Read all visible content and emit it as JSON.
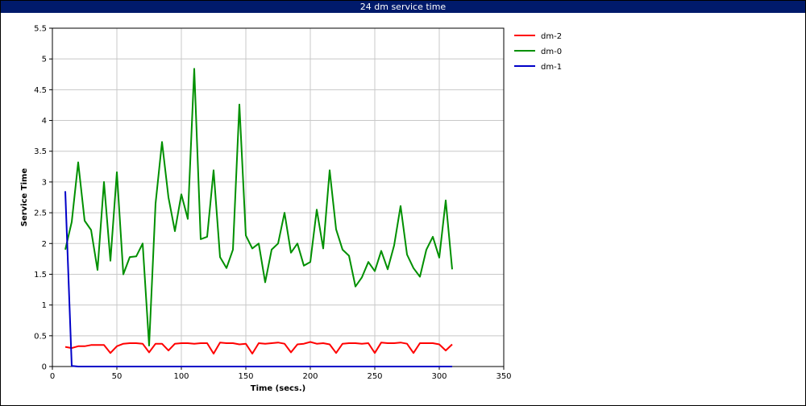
{
  "window": {
    "title": "24 dm service time"
  },
  "chart_data": {
    "type": "line",
    "title": "24 dm service time",
    "xlabel": "Time (secs.)",
    "ylabel": "Service Time",
    "xlim": [
      0,
      350
    ],
    "ylim": [
      0,
      5.5
    ],
    "xticks": [
      0,
      50,
      100,
      150,
      200,
      250,
      300,
      350
    ],
    "yticks": [
      0,
      0.5,
      1,
      1.5,
      2,
      2.5,
      3,
      3.5,
      4,
      4.5,
      5,
      5.5
    ],
    "xtick_labels": [
      "0",
      "50",
      "100",
      "150",
      "200",
      "250",
      "300",
      "350"
    ],
    "ytick_labels": [
      "0",
      "0.5",
      "1",
      "1.5",
      "2",
      "2.5",
      "3",
      "3.5",
      "4",
      "4.5",
      "5",
      "5.5"
    ],
    "grid": true,
    "legend_position": "top-right (outside plot)",
    "series": [
      {
        "name": "dm-2",
        "color": "#ff0000",
        "x": [
          10,
          15,
          20,
          25,
          30,
          35,
          40,
          45,
          50,
          55,
          60,
          65,
          70,
          75,
          80,
          85,
          90,
          95,
          100,
          105,
          110,
          115,
          120,
          125,
          130,
          135,
          140,
          145,
          150,
          155,
          160,
          165,
          170,
          175,
          180,
          185,
          190,
          195,
          200,
          205,
          210,
          215,
          220,
          225,
          230,
          235,
          240,
          245,
          250,
          255,
          260,
          265,
          270,
          275,
          280,
          285,
          290,
          295,
          300,
          305,
          310
        ],
        "y": [
          0.32,
          0.3,
          0.33,
          0.33,
          0.35,
          0.35,
          0.35,
          0.22,
          0.33,
          0.37,
          0.38,
          0.38,
          0.37,
          0.23,
          0.37,
          0.37,
          0.26,
          0.37,
          0.38,
          0.38,
          0.37,
          0.38,
          0.38,
          0.21,
          0.39,
          0.38,
          0.38,
          0.36,
          0.37,
          0.21,
          0.38,
          0.37,
          0.38,
          0.39,
          0.37,
          0.23,
          0.36,
          0.37,
          0.4,
          0.37,
          0.38,
          0.36,
          0.22,
          0.37,
          0.38,
          0.38,
          0.37,
          0.38,
          0.22,
          0.39,
          0.38,
          0.38,
          0.39,
          0.37,
          0.22,
          0.38,
          0.38,
          0.38,
          0.36,
          0.26,
          0.36
        ]
      },
      {
        "name": "dm-0",
        "color": "#009000",
        "x": [
          10,
          15,
          20,
          25,
          30,
          35,
          40,
          45,
          50,
          55,
          60,
          65,
          70,
          75,
          80,
          85,
          90,
          95,
          100,
          105,
          110,
          115,
          120,
          125,
          130,
          135,
          140,
          145,
          150,
          155,
          160,
          165,
          170,
          175,
          180,
          185,
          190,
          195,
          200,
          205,
          210,
          215,
          220,
          225,
          230,
          235,
          240,
          245,
          250,
          255,
          260,
          265,
          270,
          275,
          280,
          285,
          290,
          295,
          300,
          305,
          310
        ],
        "y": [
          1.9,
          2.35,
          3.32,
          2.37,
          2.22,
          1.57,
          3.0,
          1.72,
          3.16,
          1.5,
          1.78,
          1.79,
          2.0,
          0.34,
          2.65,
          3.65,
          2.75,
          2.2,
          2.8,
          2.4,
          4.84,
          2.07,
          2.11,
          3.19,
          1.78,
          1.6,
          1.9,
          4.26,
          2.13,
          1.92,
          2.0,
          1.37,
          1.9,
          2.0,
          2.5,
          1.85,
          2.0,
          1.64,
          1.7,
          2.55,
          1.92,
          3.19,
          2.23,
          1.9,
          1.8,
          1.3,
          1.45,
          1.7,
          1.55,
          1.88,
          1.58,
          1.97,
          2.61,
          1.82,
          1.6,
          1.46,
          1.9,
          2.11,
          1.77,
          2.7,
          1.58
        ]
      },
      {
        "name": "dm-1",
        "color": "#0000c8",
        "x": [
          10,
          15,
          20,
          50,
          100,
          150,
          200,
          250,
          300,
          310
        ],
        "y": [
          2.85,
          0.01,
          0.0,
          0.0,
          0.0,
          0.0,
          0.0,
          0.0,
          0.0,
          0.0
        ]
      }
    ]
  }
}
